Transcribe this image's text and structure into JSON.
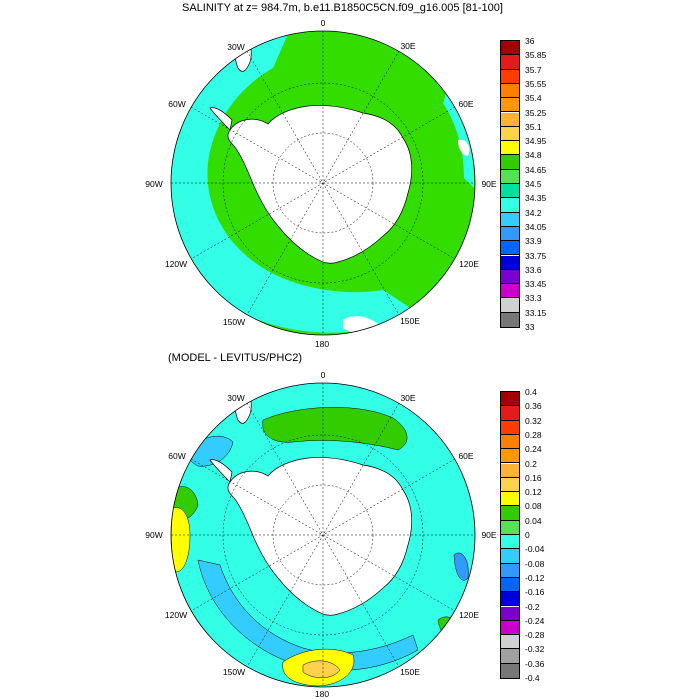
{
  "panels": [
    {
      "title": "SALINITY at z= 984.7m, b.e11.B1850C5CN.f09_g16.005 [81-100]",
      "lon_labels": {
        "n": "0",
        "nne": "30E",
        "ene": "60E",
        "e": "90E",
        "ese": "120E",
        "sse": "150E",
        "s": "180",
        "ssw": "150W",
        "wsw": "120W",
        "w": "90W",
        "wnw": "60W",
        "nnw": "30W"
      },
      "colorbar": {
        "labels": [
          "36",
          "35.85",
          "35.7",
          "35.55",
          "35.4",
          "35.25",
          "35.1",
          "34.95",
          "34.8",
          "34.65",
          "34.5",
          "34.35",
          "34.2",
          "34.05",
          "33.9",
          "33.75",
          "33.6",
          "33.45",
          "33.3",
          "33.15",
          "33"
        ],
        "colors": [
          "#a50000",
          "#e41a1c",
          "#ff3c00",
          "#ff7f00",
          "#ff9900",
          "#ffb233",
          "#ffd24d",
          "#ffff00",
          "#33cc00",
          "#55e055",
          "#00e0a0",
          "#33ffe6",
          "#33ccff",
          "#3399ff",
          "#0066ff",
          "#0000dd",
          "#7a00cc",
          "#cc00cc",
          "#d0d0d0",
          "#777777"
        ]
      }
    },
    {
      "title": "(MODEL - LEVITUS/PHC2)",
      "lon_labels": {
        "n": "0",
        "nne": "30E",
        "ene": "60E",
        "e": "90E",
        "ese": "120E",
        "sse": "150E",
        "s": "180",
        "ssw": "150W",
        "wsw": "120W",
        "w": "90W",
        "wnw": "60W",
        "nnw": "30W"
      },
      "colorbar": {
        "labels": [
          "0.4",
          "0.36",
          "0.32",
          "0.28",
          "0.24",
          "0.2",
          "0.16",
          "0.12",
          "0.08",
          "0.04",
          "0",
          "-0.04",
          "-0.08",
          "-0.12",
          "-0.16",
          "-0.2",
          "-0.24",
          "-0.28",
          "-0.32",
          "-0.36",
          "-0.4"
        ],
        "colors": [
          "#a50000",
          "#e41a1c",
          "#ff3c00",
          "#ff7f00",
          "#ff9900",
          "#ffb233",
          "#ffd24d",
          "#ffff00",
          "#33cc00",
          "#55e055",
          "#33ffe6",
          "#33ccff",
          "#3399ff",
          "#0066ff",
          "#0000dd",
          "#7a00cc",
          "#cc00cc",
          "#d0d0d0",
          "#a0a0a0",
          "#777777"
        ]
      }
    }
  ],
  "colors": {
    "ocean_top": "#33dd00",
    "ocean_top_shelf": "#33ffe6",
    "ocean_diff": "#33ffe6",
    "ocean_diff_neg": "#33ccff",
    "ocean_diff_pos": "#33cc00",
    "ocean_diff_warm": "#ffff00",
    "land": "#ffffff"
  }
}
